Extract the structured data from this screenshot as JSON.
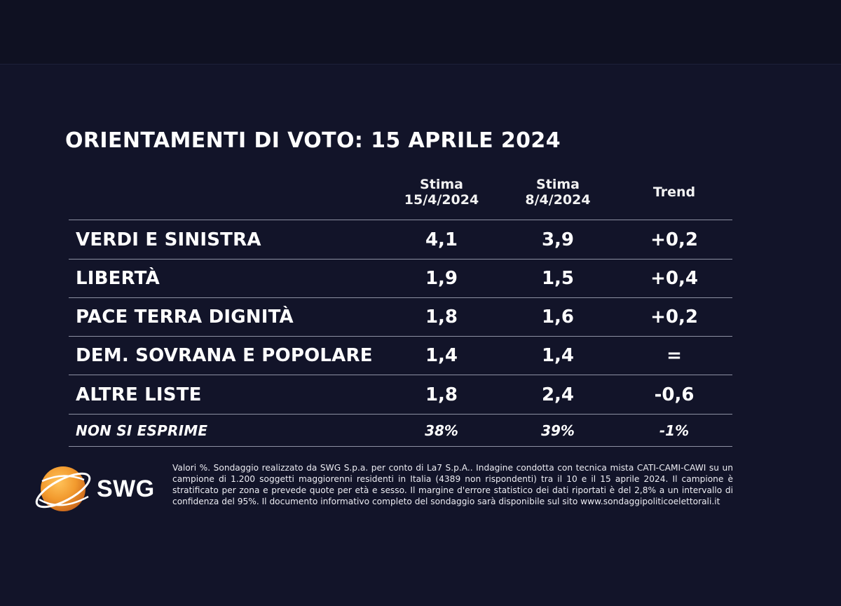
{
  "title": "ORIENTAMENTI DI VOTO: 15 APRILE 2024",
  "chart_data": {
    "type": "table",
    "columns": [
      {
        "line1": "Stima",
        "line2": "15/4/2024"
      },
      {
        "line1": "Stima",
        "line2": "8/4/2024"
      },
      {
        "line1": "Trend",
        "line2": ""
      }
    ],
    "rows": [
      {
        "label": "VERDI E SINISTRA",
        "current": "4,1",
        "previous": "3,9",
        "trend": "+0,2"
      },
      {
        "label": "LIBERTÀ",
        "current": "1,9",
        "previous": "1,5",
        "trend": "+0,4"
      },
      {
        "label": "PACE TERRA DIGNITÀ",
        "current": "1,8",
        "previous": "1,6",
        "trend": "+0,2"
      },
      {
        "label": "DEM. SOVRANA E POPOLARE",
        "current": "1,4",
        "previous": "1,4",
        "trend": "="
      },
      {
        "label": "ALTRE LISTE",
        "current": "1,8",
        "previous": "2,4",
        "trend": "-0,6"
      }
    ],
    "footer_row": {
      "label": "NON SI ESPRIME",
      "current": "38%",
      "previous": "39%",
      "trend": "-1%"
    }
  },
  "logo": {
    "text": "SWG",
    "colors": {
      "sphere": "#f29a2e",
      "ring": "#ffffff"
    }
  },
  "note": "Valori %. Sondaggio realizzato da SWG S.p.a. per conto di La7 S.p.A.. Indagine condotta con tecnica mista CATI-CAMI-CAWI su un campione di 1.200 soggetti maggiorenni residenti in Italia (4389 non rispondenti) tra il 10 e il 15 aprile 2024. Il campione è stratificato per zona e prevede quote per età e sesso. Il margine d'errore statistico dei dati riportati è del 2,8% a un intervallo di confidenza del 95%. Il documento informativo completo del sondaggio sarà disponibile sul sito www.sondaggipoliticoelettorali.it",
  "colors": {
    "background": "#121429",
    "rule": "#8d91a3",
    "text": "#ffffff"
  }
}
